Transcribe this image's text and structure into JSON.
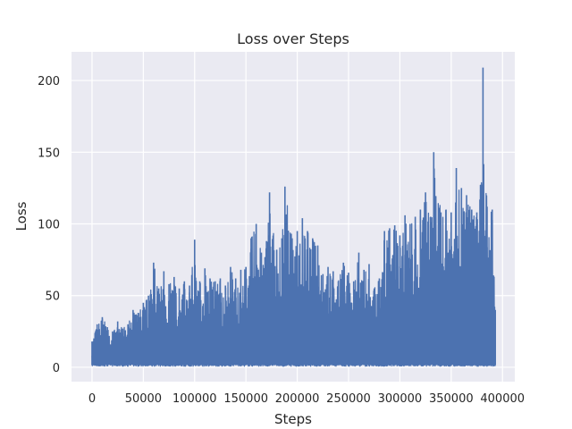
{
  "chart_data": {
    "type": "line",
    "title": "Loss over Steps",
    "xlabel": "Steps",
    "ylabel": "Loss",
    "xlim": [
      -20000,
      412000
    ],
    "ylim": [
      -10,
      220
    ],
    "x_ticks": [
      0,
      50000,
      100000,
      150000,
      200000,
      250000,
      300000,
      350000,
      400000
    ],
    "y_ticks": [
      0,
      50,
      100,
      150,
      200
    ],
    "grid": true,
    "background_color": "#eaeaf2",
    "grid_color": "#ffffff",
    "series_color": "#4c72b0",
    "series": [
      {
        "x_start": 0,
        "x_end": 393000,
        "peaks": [
          [
            0,
            18
          ],
          [
            5000,
            30
          ],
          [
            10000,
            35
          ],
          [
            15000,
            28
          ],
          [
            20000,
            25
          ],
          [
            25000,
            32
          ],
          [
            30000,
            27
          ],
          [
            35000,
            30
          ],
          [
            40000,
            40
          ],
          [
            45000,
            38
          ],
          [
            50000,
            45
          ],
          [
            55000,
            50
          ],
          [
            60000,
            73
          ],
          [
            65000,
            55
          ],
          [
            70000,
            67
          ],
          [
            75000,
            58
          ],
          [
            80000,
            63
          ],
          [
            85000,
            55
          ],
          [
            90000,
            60
          ],
          [
            95000,
            57
          ],
          [
            100000,
            89
          ],
          [
            105000,
            60
          ],
          [
            110000,
            69
          ],
          [
            115000,
            62
          ],
          [
            120000,
            60
          ],
          [
            125000,
            62
          ],
          [
            130000,
            57
          ],
          [
            135000,
            70
          ],
          [
            140000,
            62
          ],
          [
            145000,
            68
          ],
          [
            150000,
            70
          ],
          [
            155000,
            90
          ],
          [
            160000,
            100
          ],
          [
            165000,
            80
          ],
          [
            170000,
            88
          ],
          [
            173000,
            122
          ],
          [
            180000,
            82
          ],
          [
            185000,
            90
          ],
          [
            188000,
            126
          ],
          [
            195000,
            90
          ],
          [
            200000,
            95
          ],
          [
            205000,
            104
          ],
          [
            210000,
            95
          ],
          [
            215000,
            90
          ],
          [
            220000,
            85
          ],
          [
            225000,
            65
          ],
          [
            230000,
            70
          ],
          [
            235000,
            67
          ],
          [
            240000,
            60
          ],
          [
            245000,
            73
          ],
          [
            250000,
            66
          ],
          [
            255000,
            60
          ],
          [
            260000,
            80
          ],
          [
            265000,
            68
          ],
          [
            270000,
            72
          ],
          [
            275000,
            55
          ],
          [
            280000,
            62
          ],
          [
            285000,
            95
          ],
          [
            290000,
            97
          ],
          [
            295000,
            99
          ],
          [
            300000,
            92
          ],
          [
            305000,
            106
          ],
          [
            310000,
            100
          ],
          [
            315000,
            105
          ],
          [
            320000,
            110
          ],
          [
            325000,
            122
          ],
          [
            330000,
            105
          ],
          [
            333000,
            150
          ],
          [
            340000,
            108
          ],
          [
            345000,
            110
          ],
          [
            350000,
            108
          ],
          [
            355000,
            139
          ],
          [
            360000,
            125
          ],
          [
            365000,
            120
          ],
          [
            370000,
            110
          ],
          [
            375000,
            108
          ],
          [
            378000,
            117
          ],
          [
            381000,
            209
          ],
          [
            385000,
            112
          ],
          [
            390000,
            110
          ],
          [
            393000,
            40
          ]
        ],
        "floor": 1.5
      }
    ]
  }
}
